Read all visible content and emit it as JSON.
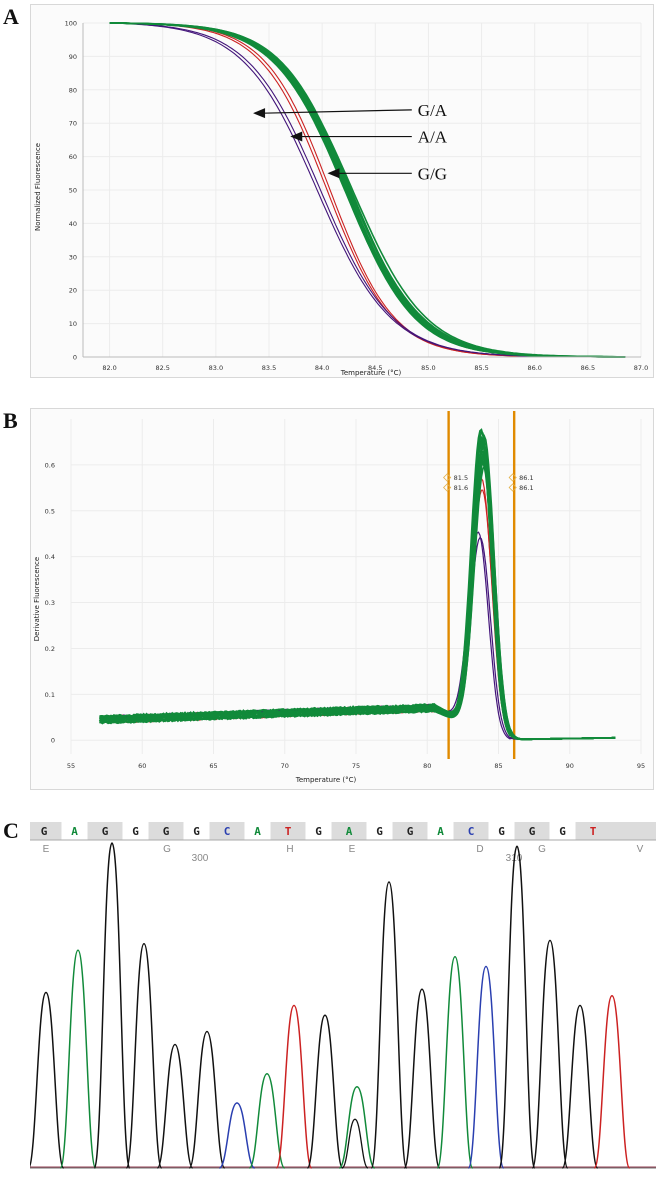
{
  "panels": {
    "a": "A",
    "b": "B",
    "c": "C"
  },
  "colors": {
    "green": "#118a3a",
    "red": "#cc2222",
    "purple": "#43157a",
    "blue": "#2a3fb0",
    "orange": "#e08a00",
    "black": "#111111",
    "grid": "#ececec"
  },
  "chart_data": [
    {
      "id": "A",
      "type": "line",
      "xlabel": "Temperature (°C)",
      "ylabel": "Normalized Fluorescence",
      "xlim": [
        81.75,
        87.0
      ],
      "ylim": [
        0,
        100
      ],
      "xticks": [
        "82.0",
        "82.5",
        "83.0",
        "83.5",
        "84.0",
        "84.5",
        "85.0",
        "85.5",
        "86.0",
        "86.5",
        "87.0"
      ],
      "yticks": [
        "0",
        "10",
        "20",
        "30",
        "40",
        "50",
        "60",
        "70",
        "80",
        "90",
        "100"
      ],
      "annotations": [
        {
          "text": "G/A",
          "pointer": [
            83.35,
            73
          ],
          "label": [
            84.9,
            74
          ]
        },
        {
          "text": "A/A",
          "pointer": [
            83.7,
            66
          ],
          "label": [
            84.9,
            66
          ]
        },
        {
          "text": "G/G",
          "pointer": [
            84.05,
            55
          ],
          "label": [
            84.9,
            55
          ]
        }
      ],
      "series": [
        {
          "group": "G/G",
          "color": "green",
          "count": 14,
          "midpoint": 84.25,
          "slope": 3.0
        },
        {
          "group": "A/A",
          "color": "red",
          "count": 2,
          "midpoint": 84.05,
          "slope": 3.3
        },
        {
          "group": "G/A",
          "color": "purple",
          "count": 2,
          "midpoint": 83.95,
          "slope": 2.9
        }
      ]
    },
    {
      "id": "B",
      "type": "line",
      "xlabel": "Temperature (°C)",
      "ylabel": "Derivative Fluorescence",
      "xlim": [
        55,
        95
      ],
      "ylim": [
        -0.03,
        0.7
      ],
      "xticks": [
        "55",
        "60",
        "65",
        "70",
        "75",
        "80",
        "85",
        "90",
        "95"
      ],
      "yticks": [
        "0",
        "0.1",
        "0.2",
        "0.3",
        "0.4",
        "0.5",
        "0.6"
      ],
      "markers": [
        {
          "x": 81.5,
          "labels": [
            "81.5",
            "81.6"
          ]
        },
        {
          "x": 86.1,
          "labels": [
            "86.1",
            "86.1"
          ]
        }
      ],
      "series": [
        {
          "group": "G/G",
          "color": "green",
          "count": 14,
          "peak_x": 83.9,
          "peak_y": [
            0.58,
            0.66
          ]
        },
        {
          "group": "A/A",
          "color": "red",
          "count": 2,
          "peak_x": 83.9,
          "peak_y": [
            0.53,
            0.55
          ]
        },
        {
          "group": "G/A",
          "color": "purple",
          "count": 2,
          "peak_x": 83.7,
          "peak_y": [
            0.42,
            0.43
          ]
        }
      ]
    },
    {
      "id": "C",
      "type": "line",
      "title": "",
      "bases": [
        "G",
        "A",
        "G",
        "G",
        "G",
        "G",
        "C",
        "A",
        "T",
        "G",
        "A",
        "G",
        "G",
        "A",
        "C",
        "G",
        "G",
        "G",
        "T"
      ],
      "amino_acids": [
        "E",
        "G",
        "H",
        "E",
        "D",
        "G",
        "V"
      ],
      "positions": [
        "300",
        "310"
      ],
      "peaks": [
        {
          "base": "G",
          "h": 0.54
        },
        {
          "base": "A",
          "h": 0.67
        },
        {
          "base": "G",
          "h": 1.0
        },
        {
          "base": "G",
          "h": 0.69
        },
        {
          "base": "G",
          "h": 0.38
        },
        {
          "base": "G",
          "h": 0.42
        },
        {
          "base": "C",
          "h": 0.2
        },
        {
          "base": "A",
          "h": 0.29
        },
        {
          "base": "T",
          "h": 0.5
        },
        {
          "base": "G",
          "h": 0.47
        },
        {
          "base": "A",
          "h": 0.25
        },
        {
          "base": "G",
          "h": 0.88
        },
        {
          "base": "G",
          "h": 0.55
        },
        {
          "base": "A",
          "h": 0.65
        },
        {
          "base": "C",
          "h": 0.62
        },
        {
          "base": "G",
          "h": 0.99
        },
        {
          "base": "G",
          "h": 0.7
        },
        {
          "base": "G",
          "h": 0.5
        },
        {
          "base": "T",
          "h": 0.53
        }
      ]
    }
  ]
}
